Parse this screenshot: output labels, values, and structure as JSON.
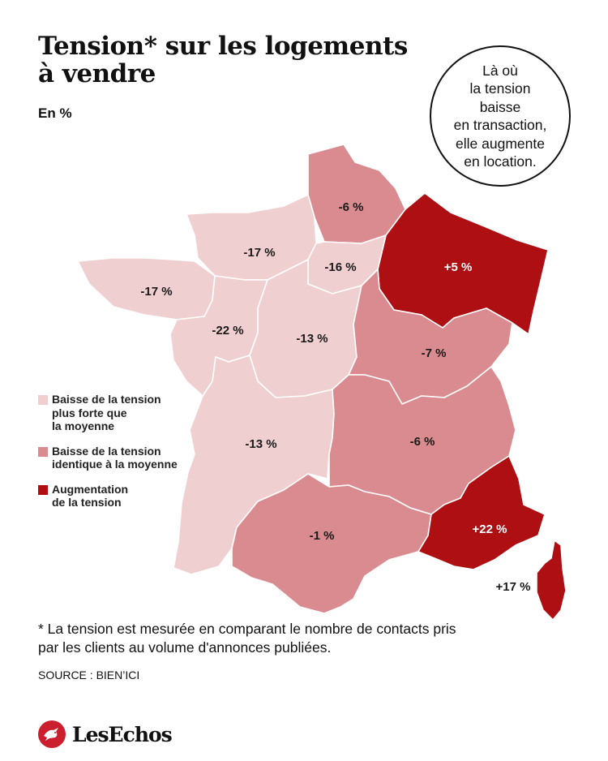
{
  "header": {
    "title": "Tension* sur les logements à vendre",
    "unit": "En %"
  },
  "callout": {
    "lines": [
      "Là où",
      "la tension",
      "baisse",
      "en transaction,",
      "elle augmente",
      "en location."
    ]
  },
  "legend": {
    "items": [
      {
        "label_lines": [
          "Baisse de la tension",
          "plus forte que",
          "la moyenne"
        ],
        "color": "#f0cfd0"
      },
      {
        "label_lines": [
          "Baisse de la tension",
          "identique à la moyenne"
        ],
        "color": "#d98b8f"
      },
      {
        "label_lines": [
          "Augmentation",
          "de la tension"
        ],
        "color": "#ad0f13"
      }
    ]
  },
  "map": {
    "regions": [
      {
        "id": "hauts-de-france",
        "label": "-6 %",
        "value": -6,
        "category": "average",
        "color": "#d98b8f"
      },
      {
        "id": "grand-est",
        "label": "+5 %",
        "value": 5,
        "category": "increase",
        "color": "#ad0f13"
      },
      {
        "id": "normandie",
        "label": "-17 %",
        "value": -17,
        "category": "stronger",
        "color": "#f0cfd0"
      },
      {
        "id": "ile-de-france",
        "label": "-16 %",
        "value": -16,
        "category": "stronger",
        "color": "#f0cfd0"
      },
      {
        "id": "bretagne",
        "label": "-17 %",
        "value": -17,
        "category": "stronger",
        "color": "#f0cfd0"
      },
      {
        "id": "pays-de-la-loire",
        "label": "-22 %",
        "value": -22,
        "category": "stronger",
        "color": "#f0cfd0"
      },
      {
        "id": "centre-val-de-loire",
        "label": "-13 %",
        "value": -13,
        "category": "stronger",
        "color": "#f0cfd0"
      },
      {
        "id": "bourgogne-franche-comte",
        "label": "-7 %",
        "value": -7,
        "category": "average",
        "color": "#d98b8f"
      },
      {
        "id": "nouvelle-aquitaine",
        "label": "-13 %",
        "value": -13,
        "category": "stronger",
        "color": "#f0cfd0"
      },
      {
        "id": "auvergne-rhone-alpes",
        "label": "-6 %",
        "value": -6,
        "category": "average",
        "color": "#d98b8f"
      },
      {
        "id": "occitanie",
        "label": "-1 %",
        "value": -1,
        "category": "average",
        "color": "#d98b8f"
      },
      {
        "id": "provence-alpes-cote-d-azur",
        "label": "+22 %",
        "value": 22,
        "category": "increase",
        "color": "#ad0f13"
      },
      {
        "id": "corse",
        "label": "+17 %",
        "value": 17,
        "category": "increase",
        "color": "#ad0f13"
      }
    ]
  },
  "footer": {
    "note_lines": [
      "* La tension est mesurée en comparant le nombre de contacts pris",
      "par les clients au volume d'annonces publiées."
    ],
    "source": "SOURCE : BIEN’ICI",
    "logo": "LesEchos"
  }
}
